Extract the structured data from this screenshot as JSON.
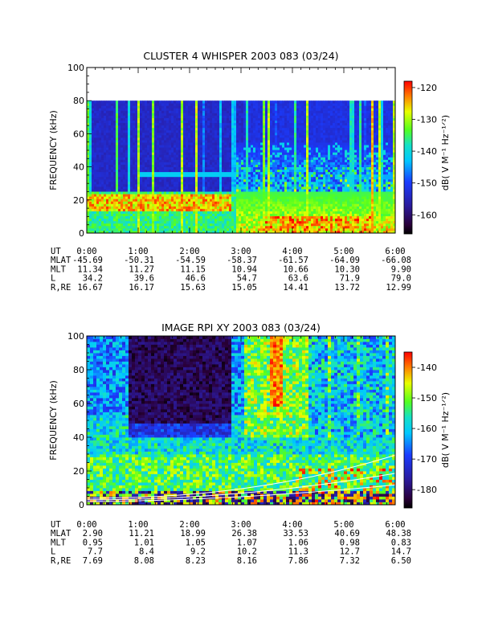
{
  "chart_data": [
    {
      "type": "heatmap",
      "title": "CLUSTER 4 WHISPER 2003 083 (03/24)",
      "ylabel": "FREQUENCY (kHz)",
      "x_ticks": [
        "0:00",
        "1:00",
        "2:00",
        "3:00",
        "4:00",
        "5:00",
        "6:00"
      ],
      "xlim_hours": [
        0,
        6
      ],
      "ylim": [
        0,
        100
      ],
      "y_ticks": [
        0,
        20,
        40,
        60,
        80,
        100
      ],
      "data_upper_khz": 80,
      "colorbar": {
        "label": "dB( V M⁻¹ Hz⁻¹ᐟ²)",
        "range": [
          -166,
          -118
        ],
        "ticks": [
          -120,
          -130,
          -140,
          -150,
          -160
        ]
      },
      "features": {
        "emission_band_khz": [
          35,
          37
        ],
        "emission_band_span_hours": [
          1.2,
          2.8
        ],
        "intense_low_band_khz": [
          14,
          24
        ],
        "intense_low_band_span_hours": [
          0,
          2.8
        ]
      },
      "ephemeris": {
        "labels": [
          "UT",
          "MLAT",
          "MLT",
          "L",
          "R,RE"
        ],
        "rows": {
          "ut": [
            "0:00",
            "1:00",
            "2:00",
            "3:00",
            "4:00",
            "5:00",
            "6:00"
          ],
          "mlat": [
            "-45.69",
            "-50.31",
            "-54.59",
            "-58.37",
            "-61.57",
            "-64.09",
            "-66.08"
          ],
          "mlt": [
            "11.34",
            "11.27",
            "11.15",
            "10.94",
            "10.66",
            "10.30",
            "9.90"
          ],
          "l": [
            "34.2",
            "39.6",
            "46.6",
            "54.7",
            "63.6",
            "71.9",
            "79.0"
          ],
          "re": [
            "16.67",
            "16.17",
            "15.63",
            "15.05",
            "14.41",
            "13.72",
            "12.99"
          ]
        }
      }
    },
    {
      "type": "heatmap",
      "title": "IMAGE RPI XY 2003 083 (03/24)",
      "ylabel": "FREQUENCY (kHz)",
      "x_ticks": [
        "0:00",
        "1:00",
        "2:00",
        "3:00",
        "4:00",
        "5:00",
        "6:00"
      ],
      "xlim_hours": [
        0,
        6
      ],
      "ylim": [
        0,
        100
      ],
      "y_ticks": [
        0,
        20,
        40,
        60,
        80,
        100
      ],
      "data_upper_khz": 100,
      "colorbar": {
        "label": "dB( V M⁻¹ Hz⁻¹ᐟ²)",
        "range": [
          -186,
          -135
        ],
        "ticks": [
          -140,
          -150,
          -160,
          -170,
          -180
        ]
      },
      "features": {
        "quiet_region_khz": [
          55,
          100
        ],
        "quiet_region_span_hours": [
          0.8,
          2.8
        ],
        "intense_column_hours": [
          3.5,
          3.8
        ],
        "plasma_frequency_curves": true
      },
      "ephemeris": {
        "labels": [
          "UT",
          "MLAT",
          "MLT",
          "L",
          "R,RE"
        ],
        "rows": {
          "ut": [
            "0:00",
            "1:00",
            "2:00",
            "3:00",
            "4:00",
            "5:00",
            "6:00"
          ],
          "mlat": [
            "2.90",
            "11.21",
            "18.99",
            "26.38",
            "33.53",
            "40.69",
            "48.38"
          ],
          "mlt": [
            "0.95",
            "1.01",
            "1.05",
            "1.07",
            "1.06",
            "0.98",
            "0.83"
          ],
          "l": [
            "7.7",
            "8.4",
            "9.2",
            "10.2",
            "11.3",
            "12.7",
            "14.7"
          ],
          "re": [
            "7.69",
            "8.08",
            "8.23",
            "8.16",
            "7.86",
            "7.32",
            "6.50"
          ]
        }
      }
    }
  ]
}
